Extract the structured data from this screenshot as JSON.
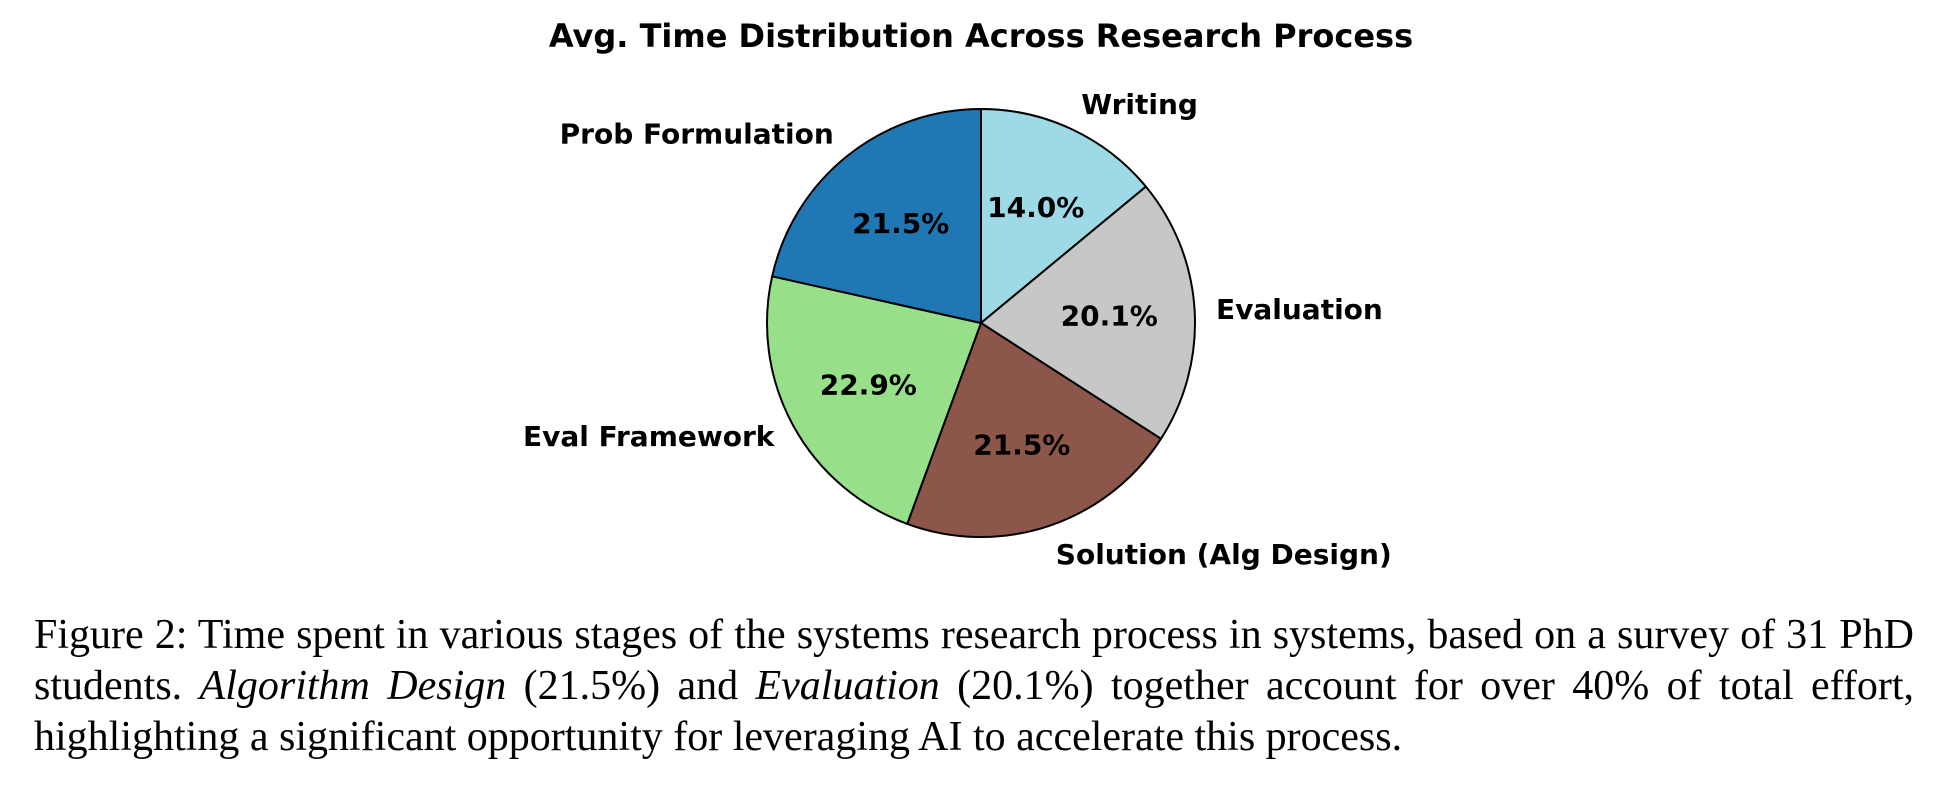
{
  "chart_data": {
    "type": "pie",
    "title": "Avg. Time Distribution Across Research Process",
    "slices": [
      {
        "label": "Writing",
        "value": 14.0,
        "pct_label": "14.0%",
        "color": "#9edae5"
      },
      {
        "label": "Evaluation",
        "value": 20.1,
        "pct_label": "20.1%",
        "color": "#c7c7c7"
      },
      {
        "label": "Solution (Alg Design)",
        "value": 21.5,
        "pct_label": "21.5%",
        "color": "#8c564b"
      },
      {
        "label": "Eval Framework",
        "value": 22.9,
        "pct_label": "22.9%",
        "color": "#98df8a"
      },
      {
        "label": "Prob Formulation",
        "value": 21.5,
        "pct_label": "21.5%",
        "color": "#1f77b4"
      }
    ],
    "start_angle": "top",
    "direction": "clockwise",
    "edge_color": "#000000"
  },
  "caption": {
    "part1": "Figure 2: Time spent in various stages of the systems research process in systems, based on a survey of 31 PhD students. ",
    "em1": "Algorithm Design",
    "part2": " (21.5%) and ",
    "em2": "Evaluation",
    "part3": " (20.1%) together account for over 40% of total effort, highlighting a significant opportunity for leveraging AI to accelerate this process."
  }
}
